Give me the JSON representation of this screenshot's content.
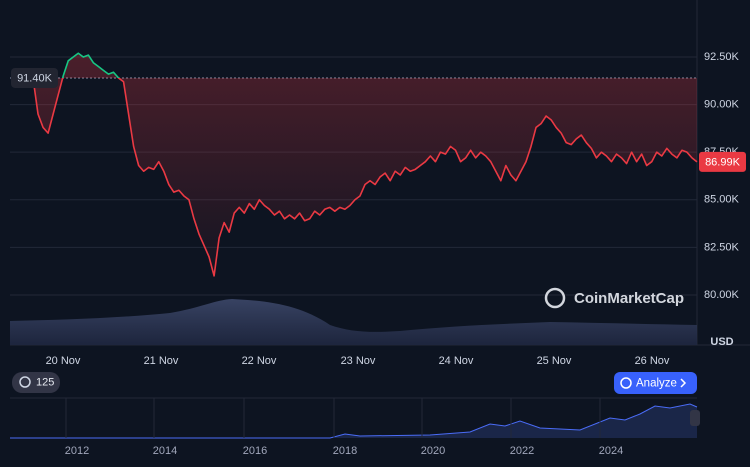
{
  "chart_data": {
    "type": "line",
    "ylim": [
      77.37,
      94.97
    ],
    "yticks": [
      {
        "value": 80,
        "label": "80.00K"
      },
      {
        "value": 82.5,
        "label": "82.50K"
      },
      {
        "value": 85,
        "label": "85.00K"
      },
      {
        "value": 87.5,
        "label": "87.50K"
      },
      {
        "value": 90,
        "label": "90.00K"
      },
      {
        "value": 92.5,
        "label": "92.50K"
      }
    ],
    "unit_label": "USD",
    "xtick_labels": [
      "20 Nov",
      "21 Nov",
      "22 Nov",
      "23 Nov",
      "24 Nov",
      "25 Nov",
      "26 Nov"
    ],
    "reference": {
      "value": 91.4,
      "label": "91.40K"
    },
    "current_label": "86.99K",
    "up_color": "#16c784",
    "down_color": "#ea3943",
    "grid": true,
    "values": [
      91.4,
      89.5,
      88.8,
      88.5,
      89.5,
      90.5,
      91.5,
      92.3,
      92.5,
      92.7,
      92.5,
      92.6,
      92.2,
      92.0,
      91.8,
      91.6,
      91.7,
      91.4,
      91.2,
      89.5,
      87.8,
      86.8,
      86.5,
      86.7,
      86.6,
      87.0,
      86.5,
      85.8,
      85.4,
      85.5,
      85.2,
      85.0,
      84.0,
      83.2,
      82.6,
      82.0,
      81.0,
      83.0,
      83.8,
      83.3,
      84.3,
      84.6,
      84.3,
      84.8,
      84.5,
      85.0,
      84.7,
      84.5,
      84.2,
      84.4,
      84.0,
      84.2,
      84.0,
      84.3,
      83.9,
      84.0,
      84.4,
      84.2,
      84.5,
      84.6,
      84.4,
      84.6,
      84.5,
      84.7,
      85.0,
      85.2,
      85.8,
      86.0,
      85.8,
      86.2,
      86.4,
      86.0,
      86.5,
      86.3,
      86.7,
      86.5,
      86.6,
      86.8,
      87.0,
      87.3,
      87.0,
      87.5,
      87.4,
      87.8,
      87.6,
      87.0,
      87.2,
      87.6,
      87.2,
      87.5,
      87.3,
      87.0,
      86.5,
      86.0,
      86.8,
      86.3,
      86.0,
      86.5,
      87.0,
      87.8,
      88.8,
      89.0,
      89.4,
      89.2,
      88.8,
      88.5,
      88.0,
      87.9,
      88.2,
      88.4,
      88.0,
      87.7,
      87.2,
      87.5,
      87.3,
      87.0,
      87.4,
      87.2,
      86.9,
      87.5,
      87.0,
      87.4,
      86.8,
      87.0,
      87.5,
      87.3,
      87.7,
      87.4,
      87.2,
      87.6,
      87.5,
      87.2,
      86.99
    ]
  },
  "watermark": "CoinMarketCap",
  "badge": "125",
  "analyze_button": "Analyze",
  "navigator": {
    "years": [
      "2012",
      "2014",
      "2016",
      "2018",
      "2020",
      "2022",
      "2024"
    ]
  }
}
